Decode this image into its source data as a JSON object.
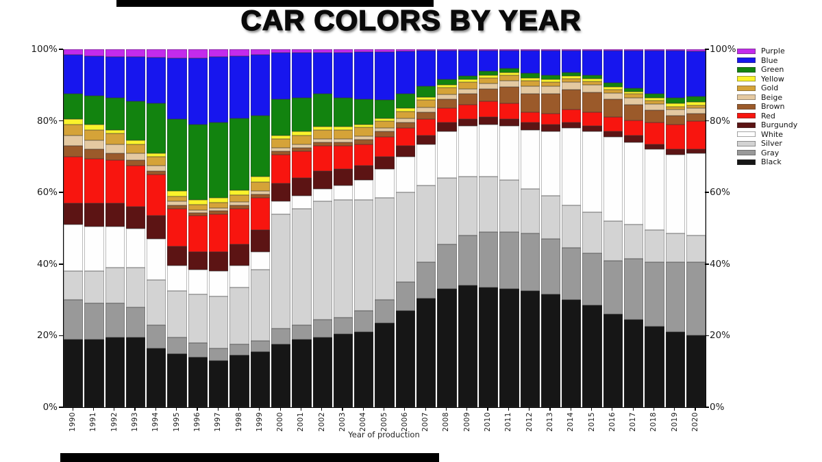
{
  "title": "CAR COLORS BY YEAR",
  "chart_data": {
    "type": "bar",
    "stacked": true,
    "normalized_percent": true,
    "title": "CAR COLORS BY YEAR",
    "xlabel": "Year of production",
    "ylabel": "",
    "ylim": [
      0,
      100
    ],
    "grid": false,
    "legend_position": "right",
    "y_ticks": [
      {
        "label": "0%",
        "value": 0
      },
      {
        "label": "20%",
        "value": 20
      },
      {
        "label": "40%",
        "value": 40
      },
      {
        "label": "60%",
        "value": 60
      },
      {
        "label": "80%",
        "value": 80
      },
      {
        "label": "100%",
        "value": 100
      }
    ],
    "y_axis_sides": [
      "left",
      "right"
    ],
    "categories": [
      "1990",
      "1991",
      "1992",
      "1993",
      "1994",
      "1995",
      "1996",
      "1997",
      "1998",
      "1999",
      "2000",
      "2001",
      "2002",
      "2003",
      "2004",
      "2005",
      "2006",
      "2007",
      "2008",
      "2009",
      "2010",
      "2011",
      "2012",
      "2013",
      "2014",
      "2015",
      "2016",
      "2017",
      "2018",
      "2019",
      "2020"
    ],
    "series": [
      {
        "name": "Black",
        "color": "#161616",
        "values": [
          19,
          19,
          19.5,
          19.5,
          16.5,
          15,
          14,
          13,
          14.5,
          15.5,
          17.5,
          19,
          19.5,
          20.5,
          21,
          23.5,
          27,
          30.5,
          33,
          34,
          33.5,
          33,
          32.5,
          31.5,
          30,
          28.5,
          26,
          24.5,
          22.5,
          21,
          20
        ]
      },
      {
        "name": "Gray",
        "color": "#999999",
        "values": [
          11,
          10,
          9.5,
          8.5,
          6.5,
          4.5,
          4,
          3.5,
          3,
          3,
          4.5,
          4,
          5,
          4.5,
          6,
          6.5,
          8,
          10,
          12.5,
          14,
          15.5,
          16,
          16,
          15.5,
          14.5,
          14.5,
          15,
          17,
          18,
          19.5,
          20.5
        ]
      },
      {
        "name": "Silver",
        "color": "#D3D3D3",
        "values": [
          8,
          9,
          10,
          11,
          12.5,
          13,
          13.5,
          14.5,
          16,
          20,
          32,
          32.5,
          33,
          33,
          31,
          28.5,
          25,
          21.5,
          18.5,
          16.5,
          15.5,
          14.5,
          12.5,
          12,
          12,
          11.5,
          11,
          9.5,
          9,
          8,
          7.5
        ]
      },
      {
        "name": "White",
        "color": "#FEFEFE",
        "values": [
          13,
          12.5,
          11.5,
          11,
          11.5,
          7,
          7,
          7,
          6,
          5,
          3.5,
          3.5,
          3.5,
          4,
          5.5,
          8,
          10,
          11.5,
          13,
          14,
          14.5,
          15,
          16.5,
          18,
          21.5,
          22.5,
          23.5,
          23,
          22.5,
          22,
          23
        ]
      },
      {
        "name": "Burgundy",
        "color": "#5C1414",
        "values": [
          6,
          6.5,
          6.5,
          6,
          6.5,
          5.5,
          5,
          5.5,
          6,
          6,
          5,
          5,
          5,
          4.5,
          4,
          3.5,
          3,
          2.5,
          2.5,
          2,
          2,
          2,
          2,
          2,
          1.6,
          1.5,
          1.5,
          1.9,
          1.5,
          1.5,
          1
        ]
      },
      {
        "name": "Red",
        "color": "#F8150F",
        "values": [
          13,
          12.5,
          12,
          11.5,
          11.5,
          10.5,
          10,
          10.5,
          10,
          9,
          8,
          7.5,
          7,
          6.5,
          6,
          5.5,
          5,
          4.5,
          4,
          4,
          4.5,
          4.5,
          3,
          3,
          3.5,
          4,
          4,
          4.2,
          6,
          7,
          8
        ]
      },
      {
        "name": "Brown",
        "color": "#9B5A2A",
        "values": [
          3,
          2.5,
          2,
          1.5,
          1,
          1,
          0.8,
          0.8,
          1,
          1,
          1,
          1,
          1,
          1,
          1.2,
          1.5,
          1.5,
          2,
          2.5,
          3,
          3.5,
          4.5,
          5,
          5.5,
          5.7,
          5.5,
          5,
          4.5,
          3.5,
          2.5,
          2
        ]
      },
      {
        "name": "Beige",
        "color": "#E4C9A1",
        "values": [
          3,
          2.5,
          2.5,
          2,
          1.5,
          1,
          0.8,
          0.8,
          0.8,
          1,
          1,
          1,
          1,
          1,
          1,
          1,
          1.2,
          1.3,
          1.3,
          1.5,
          1.5,
          1.8,
          2.2,
          2.2,
          2,
          2,
          1.8,
          1.9,
          1.8,
          1.6,
          1.5
        ]
      },
      {
        "name": "Gold",
        "color": "#D5A338",
        "values": [
          3,
          3,
          3,
          2.5,
          2.5,
          1.5,
          1.5,
          1.5,
          2,
          2.5,
          2.5,
          2.5,
          2.5,
          2.5,
          2.5,
          2,
          2,
          2,
          2,
          1.8,
          1.5,
          1.5,
          1.5,
          1.2,
          1,
          1,
          1,
          1,
          0.8,
          0.8,
          0.8
        ]
      },
      {
        "name": "Yellow",
        "color": "#FAF32B",
        "values": [
          1.5,
          1.5,
          1,
          1,
          1,
          1.5,
          1.4,
          1.4,
          1.4,
          1.4,
          1,
          1,
          1,
          1,
          0.8,
          0.8,
          0.8,
          0.8,
          0.8,
          0.8,
          0.8,
          0.8,
          0.8,
          0.8,
          0.8,
          0.8,
          0.8,
          0.6,
          0.8,
          1,
          1
        ]
      },
      {
        "name": "Green",
        "color": "#12830F",
        "values": [
          7,
          8,
          9,
          11,
          14,
          20,
          21,
          21,
          20,
          17,
          10,
          9.5,
          9,
          8,
          7,
          5,
          4,
          3,
          1.5,
          1,
          1,
          1,
          1.3,
          1,
          1,
          1,
          1,
          1,
          1.2,
          1.5,
          1.5
        ]
      },
      {
        "name": "Blue",
        "color": "#1716EE",
        "values": [
          11,
          11.2,
          11.5,
          12.5,
          12.8,
          17,
          18.5,
          18.5,
          17.5,
          17.1,
          13,
          12.5,
          11.5,
          12.5,
          13.2,
          13.5,
          12,
          10,
          8,
          7,
          5.8,
          5,
          6.3,
          6.9,
          6,
          6.8,
          9,
          10.5,
          12,
          13.2,
          12.7
        ]
      },
      {
        "name": "Purple",
        "color": "#C32BEC",
        "values": [
          1.5,
          1.8,
          2,
          2,
          2.2,
          2.5,
          2.5,
          2,
          1.8,
          1.5,
          1,
          1,
          1,
          1,
          0.8,
          0.7,
          0.5,
          0.4,
          0.4,
          0.4,
          0.4,
          0.4,
          0.4,
          0.4,
          0.4,
          0.4,
          0.4,
          0.4,
          0.4,
          0.4,
          0.5
        ]
      }
    ],
    "legend_order_top_to_bottom": [
      "Purple",
      "Blue",
      "Green",
      "Yellow",
      "Gold",
      "Beige",
      "Brown",
      "Red",
      "Burgundy",
      "White",
      "Silver",
      "Gray",
      "Black"
    ]
  }
}
